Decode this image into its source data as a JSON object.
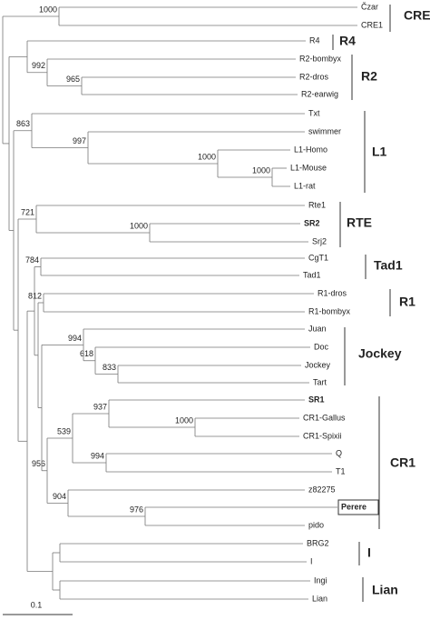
{
  "leaves": [
    "Čzar",
    "CRE1",
    "R4",
    "R2-bombyx",
    "R2-dros",
    "R2-earwig",
    "Txt",
    "swimmer",
    "L1-Homo",
    "L1-Mouse",
    "L1-rat",
    "Rte1",
    "SR2",
    "Srj2",
    "CgT1",
    "Tad1",
    "R1-dros",
    "R1-bombyx",
    "Juan",
    "Doc",
    "Jockey",
    "Tart",
    "SR1",
    "CR1-Gallus",
    "CR1-Spixii",
    "Q",
    "T1",
    "z82275",
    "Perere",
    "pido",
    "BRG2",
    "I",
    "Ingi",
    "Lian"
  ],
  "bootstrap": [
    1000,
    992,
    965,
    863,
    997,
    1000,
    1000,
    721,
    1000,
    784,
    812,
    994,
    618,
    833,
    937,
    1000,
    539,
    994,
    956,
    904,
    976
  ],
  "clades": [
    "CRE",
    "R4",
    "R2",
    "L1",
    "RTE",
    "Tad1",
    "R1",
    "Jockey",
    "CR1",
    "I",
    "Lian"
  ],
  "scale_bar": "0.1"
}
